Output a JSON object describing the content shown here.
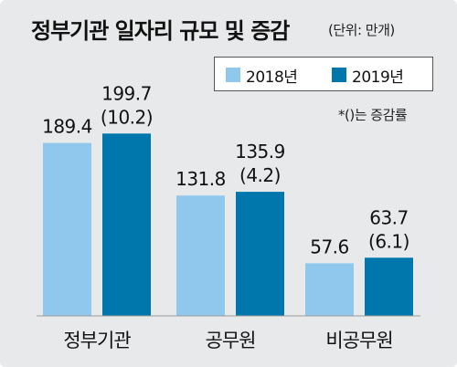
{
  "title": "정부기관 일자리 규모 및 증감",
  "unit_note": "(단위: 만개)",
  "change_note": "*()는 증감률",
  "colors": {
    "y2018": "#8fc8ec",
    "y2019": "#0077ac",
    "background": "#e8e9ea"
  },
  "chart_data": {
    "type": "bar",
    "title": "정부기관 일자리 규모 및 증감",
    "categories": [
      "정부기관",
      "공무원",
      "비공무원"
    ],
    "series": [
      {
        "name": "2018년",
        "values": [
          189.4,
          131.8,
          57.6
        ]
      },
      {
        "name": "2019년",
        "values": [
          199.7,
          135.9,
          63.7
        ],
        "changes": [
          "(10.2)",
          "(4.2)",
          "(6.1)"
        ]
      }
    ],
    "legend_position": "top-right",
    "grid": false
  }
}
